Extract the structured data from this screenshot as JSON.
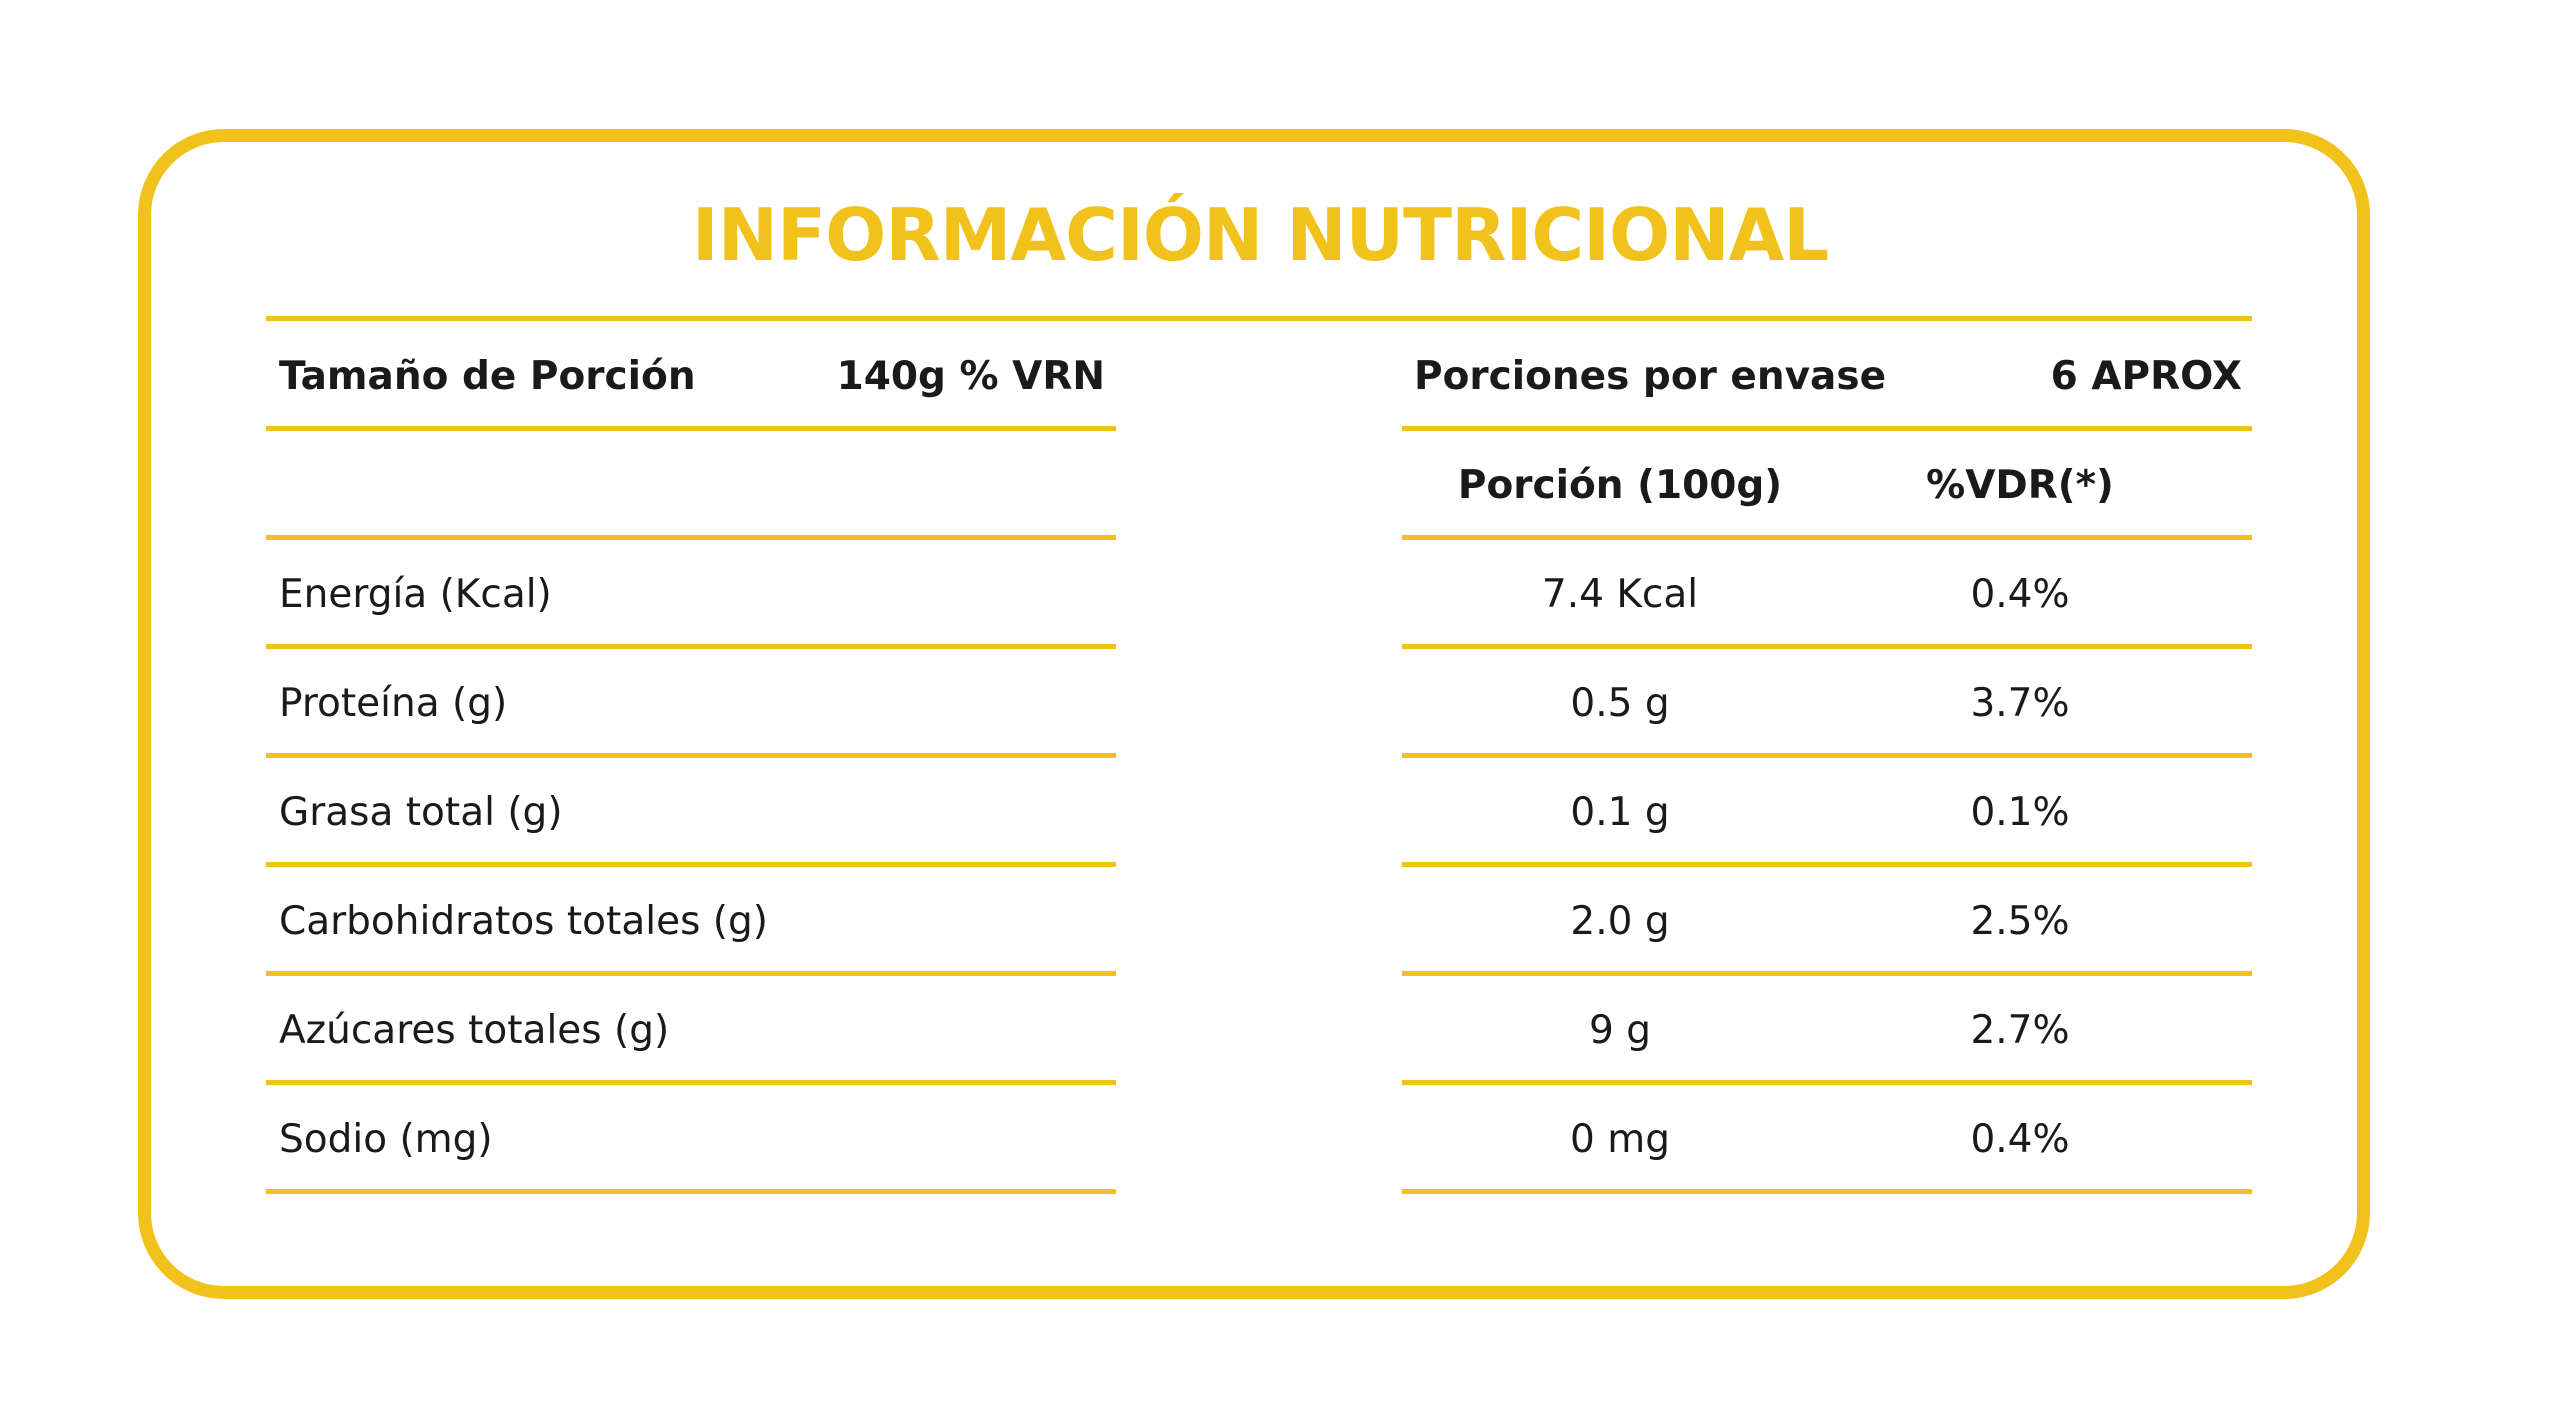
{
  "title": "INFORMACIÓN NUTRICIONAL",
  "colors": {
    "accent": "#f1c21b",
    "text": "#1a1a1a"
  },
  "header": {
    "serving_size_label": "Tamaño de Porción",
    "serving_size_value": "140g % VRN",
    "servings_label": "Porciones por envase",
    "servings_value": "6 APROX"
  },
  "columns": {
    "portion": "Porción (100g)",
    "vdr": "%VDR(*)"
  },
  "rows": [
    {
      "name": "Energía (Kcal)",
      "portion": "7.4 Kcal",
      "vdr": "0.4%"
    },
    {
      "name": "Proteína (g)",
      "portion": "0.5 g",
      "vdr": "3.7%"
    },
    {
      "name": "Grasa total (g)",
      "portion": "0.1 g",
      "vdr": "0.1%"
    },
    {
      "name": "Carbohidratos totales (g)",
      "portion": "2.0 g",
      "vdr": "2.5%"
    },
    {
      "name": "Azúcares totales (g)",
      "portion": "9 g",
      "vdr": "2.7%"
    },
    {
      "name": "Sodio (mg)",
      "portion": "0 mg",
      "vdr": "0.4%"
    }
  ]
}
